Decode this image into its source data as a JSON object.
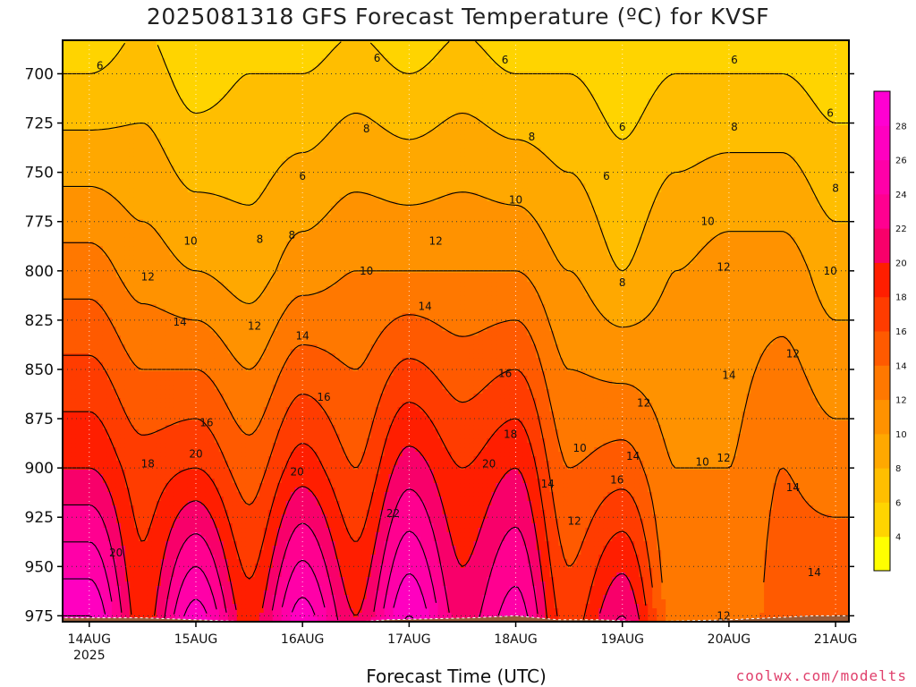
{
  "title": "2025081318 GFS Forecast Temperature (ºC) for KVSF",
  "xlabel": "Forecast Time (UTC)",
  "credit": "coolwx.com/modelts",
  "chart_data": {
    "type": "heatmap",
    "title": "2025081318 GFS Forecast Temperature (ºC) for KVSF",
    "xlabel": "Forecast Time (UTC)",
    "ylabel": "",
    "x_ticks": [
      "14AUG",
      "15AUG",
      "16AUG",
      "17AUG",
      "18AUG",
      "19AUG",
      "20AUG",
      "21AUG"
    ],
    "x_tick_sub": "2025",
    "y_ticks": [
      700,
      725,
      750,
      775,
      800,
      825,
      850,
      875,
      900,
      925,
      950,
      975
    ],
    "ylim": [
      978,
      683
    ],
    "y_scale": "pressure (hPa), increasing downward",
    "xlim_days": [
      13.75,
      21.125
    ],
    "grid": true,
    "colorbar": {
      "levels": [
        2,
        4,
        6,
        8,
        10,
        12,
        14,
        16,
        18,
        20,
        22,
        24,
        26,
        28,
        30
      ],
      "tick_labels": [
        "4",
        "6",
        "8",
        "10",
        "12",
        "14",
        "16",
        "18",
        "20",
        "22",
        "24",
        "26",
        "28"
      ],
      "colors": [
        "#ffff00",
        "#ffd400",
        "#ffbe00",
        "#ffa800",
        "#ff9200",
        "#ff7800",
        "#ff5a00",
        "#ff3c00",
        "#ff1e00",
        "#f8006a",
        "#ff0090",
        "#ff00a8",
        "#ff00c0",
        "#ff00d2"
      ]
    },
    "temperature_profiles": [
      {
        "time": "14AUG00",
        "t700": 6,
        "t800": 13,
        "t900": 20,
        "t975": 28
      },
      {
        "time": "14AUG12",
        "t700": 7,
        "t800": 11,
        "t900": 17,
        "t975": 19
      },
      {
        "time": "15AUG00",
        "t700": 5,
        "t800": 10,
        "t900": 18,
        "t975": 27
      },
      {
        "time": "15AUG12",
        "t700": 6,
        "t800": 9,
        "t900": 15,
        "t975": 19
      },
      {
        "time": "16AUG00",
        "t700": 6,
        "t800": 11,
        "t900": 19,
        "t975": 27
      },
      {
        "time": "16AUG12",
        "t700": 7,
        "t800": 12,
        "t900": 16,
        "t975": 20
      },
      {
        "time": "17AUG00",
        "t700": 6,
        "t800": 12,
        "t900": 21,
        "t975": 28
      },
      {
        "time": "17AUG12",
        "t700": 7,
        "t800": 12,
        "t900": 18,
        "t975": 21
      },
      {
        "time": "18AUG00",
        "t700": 6,
        "t800": 12,
        "t900": 20,
        "t975": 25
      },
      {
        "time": "18AUG12",
        "t700": 6,
        "t800": 10,
        "t900": 14,
        "t975": 17
      },
      {
        "time": "19AUG00",
        "t700": 5,
        "t800": 8,
        "t900": 15,
        "t975": 22
      },
      {
        "time": "19AUG12",
        "t700": 6,
        "t800": 10,
        "t900": 12,
        "t975": 13
      },
      {
        "time": "20AUG00",
        "t700": 6,
        "t800": 11,
        "t900": 12,
        "t975": 12
      },
      {
        "time": "20AUG12",
        "t700": 6,
        "t800": 11,
        "t900": 14,
        "t975": 15
      },
      {
        "time": "21AUG00",
        "t700": 5,
        "t800": 9,
        "t900": 13,
        "t975": 16
      }
    ],
    "contour_labels": [
      {
        "text": "6",
        "day": 14.1,
        "p": 696
      },
      {
        "text": "6",
        "day": 16.7,
        "p": 692
      },
      {
        "text": "6",
        "day": 17.9,
        "p": 693
      },
      {
        "text": "6",
        "day": 19.0,
        "p": 727
      },
      {
        "text": "6",
        "day": 18.85,
        "p": 752
      },
      {
        "text": "6",
        "day": 20.05,
        "p": 693
      },
      {
        "text": "6",
        "day": 20.95,
        "p": 720
      },
      {
        "text": "6",
        "day": 16.0,
        "p": 752
      },
      {
        "text": "8",
        "day": 16.6,
        "p": 728
      },
      {
        "text": "8",
        "day": 18.15,
        "p": 732
      },
      {
        "text": "8",
        "day": 15.6,
        "p": 784
      },
      {
        "text": "8",
        "day": 15.9,
        "p": 782
      },
      {
        "text": "8",
        "day": 19.0,
        "p": 806
      },
      {
        "text": "8",
        "day": 20.05,
        "p": 727
      },
      {
        "text": "8",
        "day": 21.0,
        "p": 758
      },
      {
        "text": "10",
        "day": 14.95,
        "p": 785
      },
      {
        "text": "10",
        "day": 16.6,
        "p": 800
      },
      {
        "text": "10",
        "day": 18.0,
        "p": 764
      },
      {
        "text": "10",
        "day": 19.8,
        "p": 775
      },
      {
        "text": "10",
        "day": 20.95,
        "p": 800
      },
      {
        "text": "10",
        "day": 18.6,
        "p": 890
      },
      {
        "text": "10",
        "day": 19.75,
        "p": 897
      },
      {
        "text": "12",
        "day": 14.55,
        "p": 803
      },
      {
        "text": "12",
        "day": 15.55,
        "p": 828
      },
      {
        "text": "12",
        "day": 17.25,
        "p": 785
      },
      {
        "text": "12",
        "day": 19.2,
        "p": 867
      },
      {
        "text": "12",
        "day": 19.95,
        "p": 798
      },
      {
        "text": "12",
        "day": 20.6,
        "p": 842
      },
      {
        "text": "12",
        "day": 19.95,
        "p": 895
      },
      {
        "text": "12",
        "day": 18.55,
        "p": 927
      },
      {
        "text": "12",
        "day": 19.95,
        "p": 975
      },
      {
        "text": "14",
        "day": 14.85,
        "p": 826
      },
      {
        "text": "14",
        "day": 16.0,
        "p": 833
      },
      {
        "text": "14",
        "day": 17.15,
        "p": 818
      },
      {
        "text": "14",
        "day": 18.3,
        "p": 908
      },
      {
        "text": "14",
        "day": 19.1,
        "p": 894
      },
      {
        "text": "14",
        "day": 20.0,
        "p": 853
      },
      {
        "text": "14",
        "day": 20.6,
        "p": 910
      },
      {
        "text": "14",
        "day": 20.8,
        "p": 953
      },
      {
        "text": "16",
        "day": 15.1,
        "p": 877
      },
      {
        "text": "16",
        "day": 16.2,
        "p": 864
      },
      {
        "text": "16",
        "day": 17.9,
        "p": 852
      },
      {
        "text": "16",
        "day": 18.95,
        "p": 906
      },
      {
        "text": "18",
        "day": 14.55,
        "p": 898
      },
      {
        "text": "18",
        "day": 17.95,
        "p": 883
      },
      {
        "text": "20",
        "day": 14.25,
        "p": 943
      },
      {
        "text": "20",
        "day": 15.0,
        "p": 893
      },
      {
        "text": "20",
        "day": 15.95,
        "p": 902
      },
      {
        "text": "20",
        "day": 17.75,
        "p": 898
      },
      {
        "text": "22",
        "day": 16.85,
        "p": 923
      }
    ]
  }
}
